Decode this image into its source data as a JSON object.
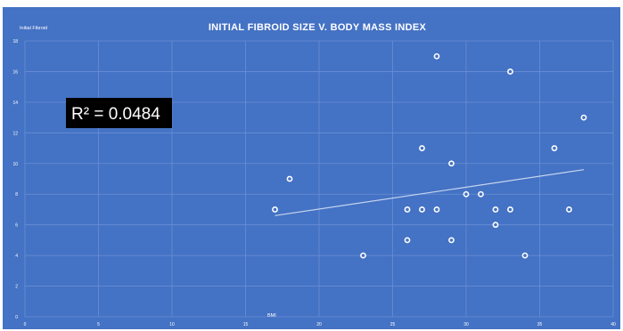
{
  "chart_data": {
    "type": "scatter",
    "title": "INITIAL FIBROID SIZE V. BODY MASS INDEX",
    "ylabel": "Initial Fibroid",
    "xlabel": "BMI",
    "annotation": "R² = 0.0484",
    "xlim": [
      0,
      40
    ],
    "ylim": [
      0,
      18
    ],
    "xticks": [
      0,
      5,
      10,
      15,
      20,
      25,
      30,
      35,
      40
    ],
    "yticks": [
      0,
      2,
      4,
      6,
      8,
      10,
      12,
      14,
      16,
      18
    ],
    "grid": true,
    "colors": {
      "background": "#4472c4",
      "plot_area": "#4472c4",
      "grid": "#6a8fd4",
      "marker_fill": "#4472c4",
      "marker_edge": "#ffffff",
      "trendline": "#c5d5ef",
      "annotation_box": "#000000"
    },
    "points": [
      {
        "x": 17,
        "y": 7
      },
      {
        "x": 18,
        "y": 9
      },
      {
        "x": 23,
        "y": 4
      },
      {
        "x": 26,
        "y": 5
      },
      {
        "x": 26,
        "y": 7
      },
      {
        "x": 27,
        "y": 7
      },
      {
        "x": 27,
        "y": 11
      },
      {
        "x": 28,
        "y": 7
      },
      {
        "x": 28,
        "y": 17
      },
      {
        "x": 29,
        "y": 5
      },
      {
        "x": 29,
        "y": 10
      },
      {
        "x": 30,
        "y": 8
      },
      {
        "x": 31,
        "y": 8
      },
      {
        "x": 32,
        "y": 6
      },
      {
        "x": 32,
        "y": 7
      },
      {
        "x": 33,
        "y": 7
      },
      {
        "x": 33,
        "y": 16
      },
      {
        "x": 34,
        "y": 4
      },
      {
        "x": 36,
        "y": 11
      },
      {
        "x": 37,
        "y": 7
      },
      {
        "x": 38,
        "y": 13
      }
    ],
    "trendline": {
      "x": [
        17,
        38
      ],
      "y": [
        6.6,
        9.6
      ]
    }
  }
}
